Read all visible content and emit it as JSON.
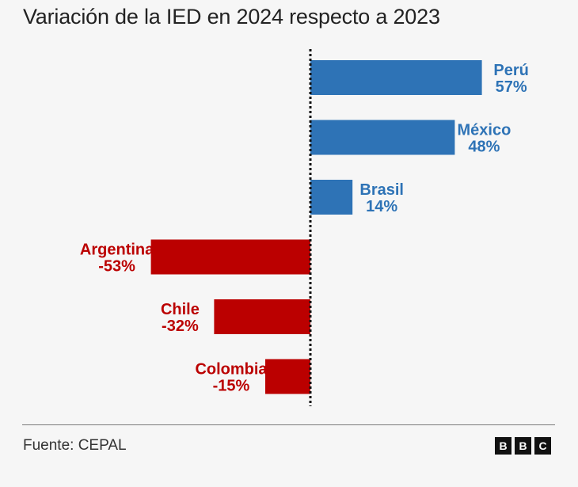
{
  "chart_data": {
    "type": "bar",
    "orientation": "horizontal",
    "title": "Variación de la IED en 2024 respecto a 2023",
    "xlabel": "",
    "ylabel": "",
    "unit": "%",
    "categories": [
      "Perú",
      "México",
      "Brasil",
      "Argentina",
      "Chile",
      "Colombia"
    ],
    "values": [
      57,
      48,
      14,
      -53,
      -32,
      -15
    ],
    "value_labels": [
      "57%",
      "48%",
      "14%",
      "-53%",
      "-32%",
      "-15%"
    ],
    "zero_line": "dotted",
    "grid": false,
    "legend": "none",
    "colors": {
      "positive": "#2e73b6",
      "negative": "#bb0000"
    }
  },
  "footer": {
    "source": "Fuente: CEPAL",
    "logo_letters": [
      "B",
      "B",
      "C"
    ]
  }
}
